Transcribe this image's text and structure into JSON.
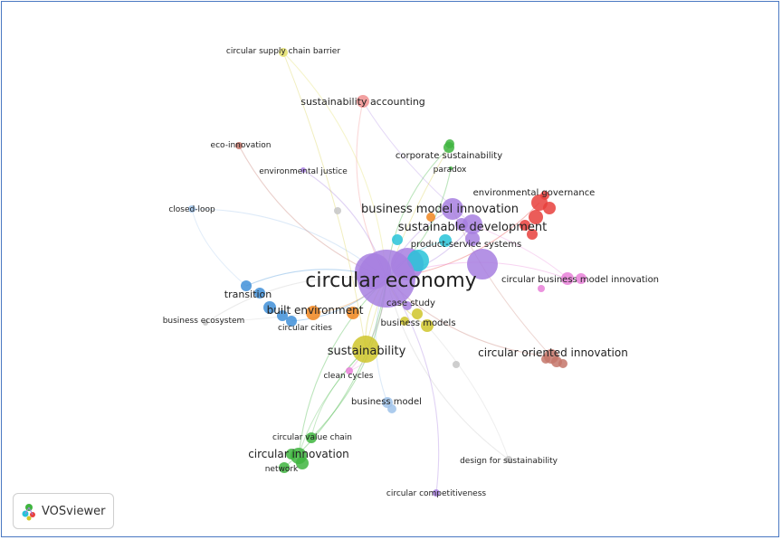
{
  "colors": {
    "purple": "#a77fe0",
    "red": "#e8403c",
    "green": "#3fb53f",
    "yellow": "#cfc62a",
    "cyan": "#27c3d8",
    "blue": "#3f8fd8",
    "orange": "#f1861e",
    "brown": "#c4766a",
    "pink": "#e780d8",
    "salmon": "#f08f8f",
    "lightblue": "#9ec2ea",
    "gray": "#c6c6c6",
    "olive": "#e3df6a",
    "frame": "#4a78c2"
  },
  "nodes": [
    {
      "id": "circular-economy",
      "label": "circular economy",
      "color": "purple",
      "weight": 5
    },
    {
      "id": "sustainability",
      "label": "sustainability",
      "color": "yellow",
      "weight": 4
    },
    {
      "id": "business-model-innovation",
      "label": "business model innovation",
      "color": "purple",
      "weight": 3
    },
    {
      "id": "sustainable-development",
      "label": "sustainable development",
      "color": "purple",
      "weight": 3
    },
    {
      "id": "product-service-systems",
      "label": "product-service systems",
      "color": "cyan",
      "weight": 2
    },
    {
      "id": "environmental-governance",
      "label": "environmental governance",
      "color": "red",
      "weight": 2
    },
    {
      "id": "circular-business-model-innovation",
      "label": "circular business model innovation",
      "color": "pink",
      "weight": 2
    },
    {
      "id": "circular-oriented-innovation",
      "label": "circular oriented innovation",
      "color": "brown",
      "weight": 2
    },
    {
      "id": "case-study",
      "label": "case study",
      "color": "purple",
      "weight": 1
    },
    {
      "id": "business-models",
      "label": "business models",
      "color": "yellow",
      "weight": 2
    },
    {
      "id": "built-environment",
      "label": "built environment",
      "color": "orange",
      "weight": 2
    },
    {
      "id": "transition",
      "label": "transition",
      "color": "blue",
      "weight": 2
    },
    {
      "id": "circular-cities",
      "label": "circular cities",
      "color": "blue",
      "weight": 1
    },
    {
      "id": "business-ecosystem",
      "label": "business ecosystem",
      "color": "gray",
      "weight": 1
    },
    {
      "id": "clean-cycles",
      "label": "clean cycles",
      "color": "pink",
      "weight": 1
    },
    {
      "id": "business-model",
      "label": "business model",
      "color": "lightblue",
      "weight": 1
    },
    {
      "id": "circular-value-chain",
      "label": "circular value chain",
      "color": "green",
      "weight": 1
    },
    {
      "id": "circular-innovation",
      "label": "circular innovation",
      "color": "green",
      "weight": 2
    },
    {
      "id": "network",
      "label": "network",
      "color": "green",
      "weight": 1
    },
    {
      "id": "design-for-sustainability",
      "label": "design for sustainability",
      "color": "gray",
      "weight": 1
    },
    {
      "id": "circular-competitiveness",
      "label": "circular competitiveness",
      "color": "purple",
      "weight": 1
    },
    {
      "id": "closed-loop",
      "label": "closed-loop",
      "color": "lightblue",
      "weight": 1
    },
    {
      "id": "eco-innovation",
      "label": "eco-innovation",
      "color": "brown",
      "weight": 1
    },
    {
      "id": "environmental-justice",
      "label": "environmental justice",
      "color": "purple",
      "weight": 1
    },
    {
      "id": "sustainability-accounting",
      "label": "sustainability accounting",
      "color": "salmon",
      "weight": 2
    },
    {
      "id": "circular-supply-chain-barrier",
      "label": "circular supply chain barrier",
      "color": "olive",
      "weight": 1
    },
    {
      "id": "corporate-sustainability",
      "label": "corporate sustainability",
      "color": "green",
      "weight": 2
    },
    {
      "id": "paradox",
      "label": "paradox",
      "color": "green",
      "weight": 1
    }
  ],
  "brand": {
    "name": "VOSviewer"
  }
}
